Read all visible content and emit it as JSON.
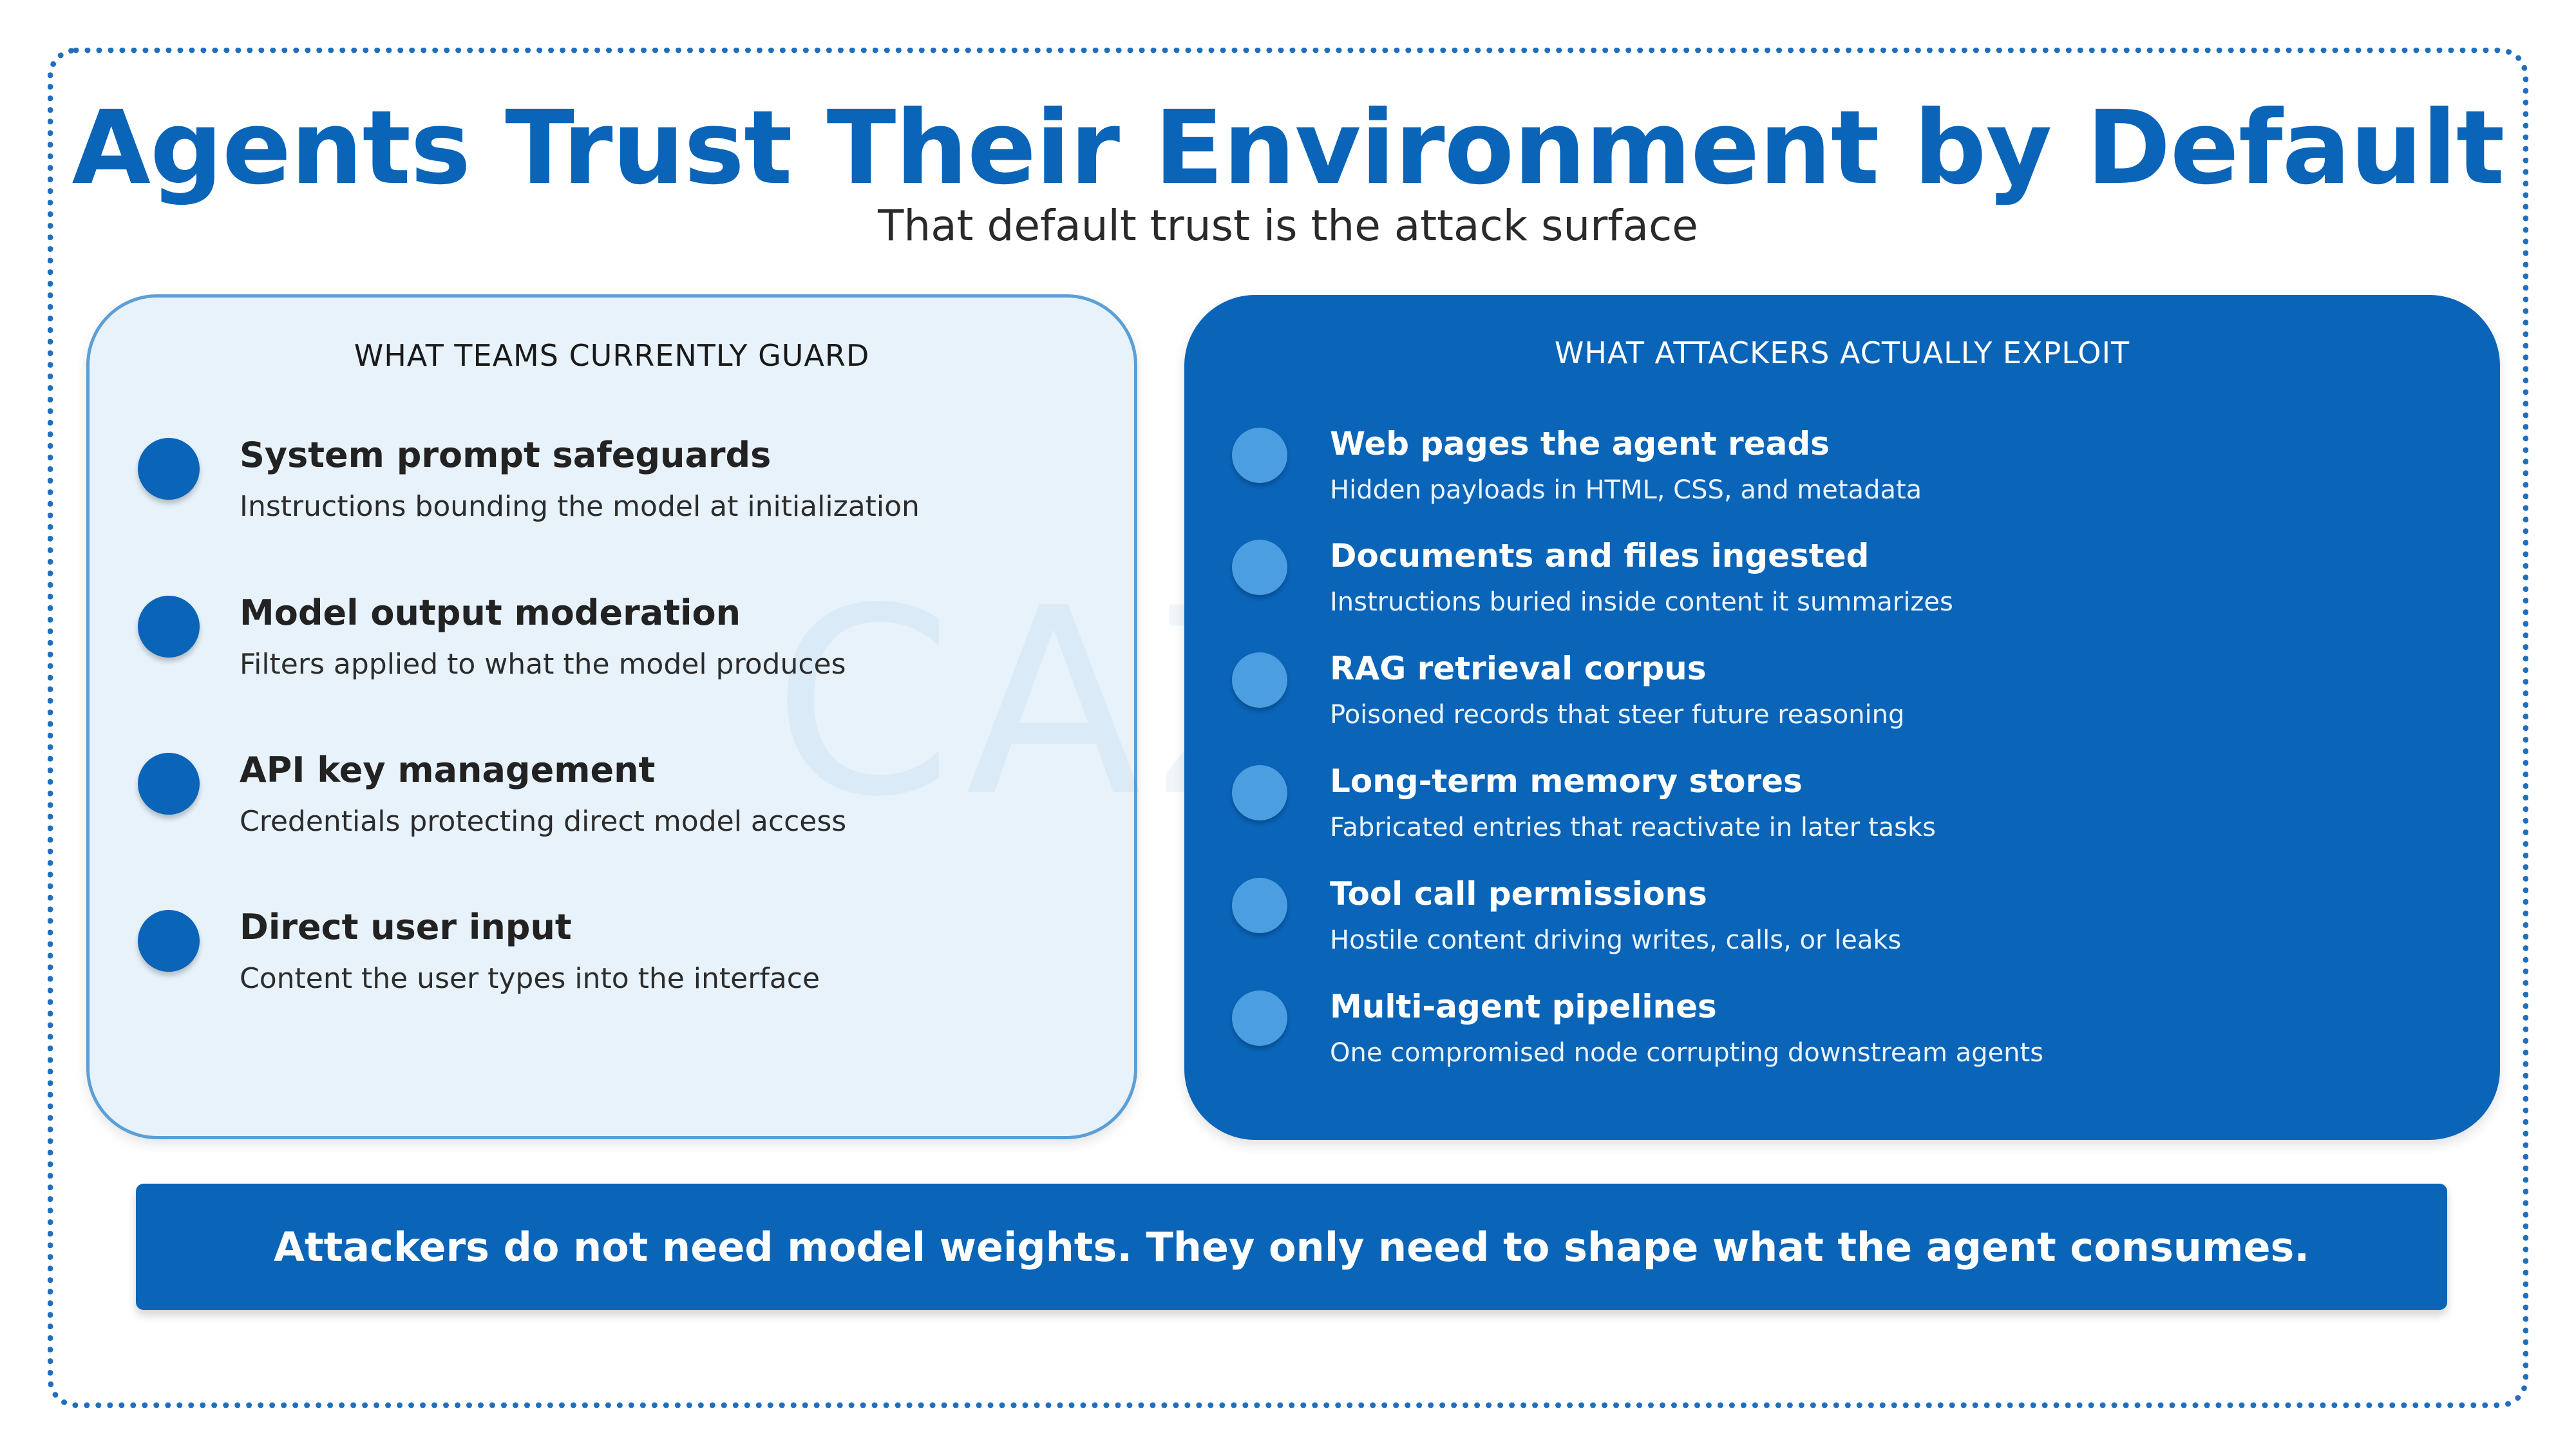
{
  "title": "Agents Trust Their Environment by Default",
  "subtitle": "That default trust is the attack surface",
  "watermark": "CAZ",
  "left_panel": {
    "heading": "WHAT TEAMS CURRENTLY GUARD",
    "items": [
      {
        "title": "System prompt safeguards",
        "desc": "Instructions bounding the model at initialization"
      },
      {
        "title": "Model output moderation",
        "desc": "Filters applied to what the model produces"
      },
      {
        "title": "API key management",
        "desc": "Credentials protecting direct model access"
      },
      {
        "title": "Direct user input",
        "desc": "Content the user types into the interface"
      }
    ]
  },
  "right_panel": {
    "heading": "WHAT ATTACKERS ACTUALLY EXPLOIT",
    "items": [
      {
        "title": "Web pages the agent reads",
        "desc": "Hidden payloads in HTML, CSS, and metadata"
      },
      {
        "title": "Documents and files ingested",
        "desc": "Instructions buried inside content it summarizes"
      },
      {
        "title": "RAG retrieval corpus",
        "desc": "Poisoned records that steer future reasoning"
      },
      {
        "title": "Long-term memory stores",
        "desc": "Fabricated entries that reactivate in later tasks"
      },
      {
        "title": "Tool call permissions",
        "desc": "Hostile content driving writes, calls, or leaks"
      },
      {
        "title": "Multi-agent pipelines",
        "desc": "One compromised node corrupting downstream agents"
      }
    ]
  },
  "banner": "Attackers do not need model weights. They only need to shape what the agent consumes.",
  "colors": {
    "primary": "#0a64b8",
    "left_panel_bg": "#e7f2fb",
    "right_dot": "#4b9ee0"
  }
}
